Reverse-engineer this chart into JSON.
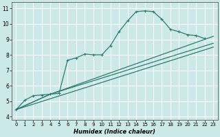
{
  "bg_color": "#cce8e8",
  "grid_color": "#ffffff",
  "line_color": "#2d7a6e",
  "xlabel": "Humidex (Indice chaleur)",
  "xlim": [
    -0.5,
    23.5
  ],
  "ylim": [
    3.8,
    11.4
  ],
  "xticks": [
    0,
    1,
    2,
    3,
    4,
    5,
    6,
    7,
    8,
    9,
    10,
    11,
    12,
    13,
    14,
    15,
    16,
    17,
    18,
    19,
    20,
    21,
    22,
    23
  ],
  "yticks": [
    4,
    5,
    6,
    7,
    8,
    9,
    10,
    11
  ],
  "curve1_x": [
    0,
    1,
    2,
    3,
    4,
    5,
    6,
    7,
    8,
    9,
    10,
    11,
    12,
    13,
    14,
    15,
    16,
    17,
    18,
    19,
    20,
    21,
    22
  ],
  "curve1_y": [
    4.45,
    5.05,
    5.35,
    5.4,
    5.45,
    5.5,
    7.65,
    7.8,
    8.05,
    8.0,
    8.0,
    8.6,
    9.5,
    10.2,
    10.8,
    10.85,
    10.8,
    10.3,
    9.65,
    9.5,
    9.3,
    9.25,
    9.05
  ],
  "curve2_x": [
    0,
    23
  ],
  "curve2_y": [
    4.45,
    8.5
  ],
  "curve3_x": [
    0,
    4,
    23
  ],
  "curve3_y": [
    4.45,
    5.45,
    8.75
  ],
  "curve4_x": [
    0,
    4,
    23
  ],
  "curve4_y": [
    4.45,
    5.45,
    9.2
  ]
}
